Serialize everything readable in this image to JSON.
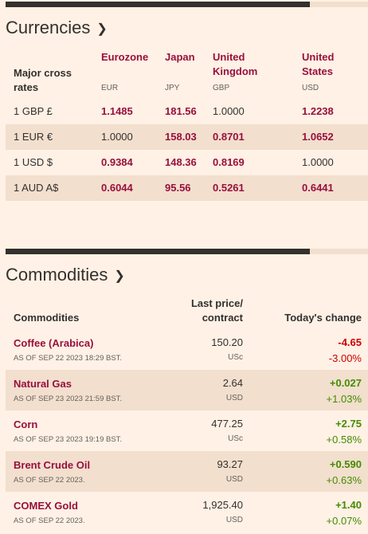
{
  "currencies": {
    "title": "Currencies",
    "row_header": "Major cross rates",
    "columns": [
      {
        "name": "Eurozone",
        "code": "EUR"
      },
      {
        "name": "Japan",
        "code": "JPY"
      },
      {
        "name": "United Kingdom",
        "code": "GBP"
      },
      {
        "name": "United States",
        "code": "USD"
      }
    ],
    "rows": [
      {
        "label": "1 GBP £",
        "values": [
          "1.1485",
          "181.56",
          "1.0000",
          "1.2238"
        ]
      },
      {
        "label": "1 EUR €",
        "values": [
          "1.0000",
          "158.03",
          "0.8701",
          "1.0652"
        ]
      },
      {
        "label": "1 USD $",
        "values": [
          "0.9384",
          "148.36",
          "0.8169",
          "1.0000"
        ]
      },
      {
        "label": "1 AUD A$",
        "values": [
          "0.6044",
          "95.56",
          "0.5261",
          "0.6441"
        ]
      }
    ]
  },
  "commodities": {
    "title": "Commodities",
    "headers": {
      "name": "Commodities",
      "price_line1": "Last price/",
      "price_line2": "contract",
      "change": "Today's change"
    },
    "rows": [
      {
        "name": "Coffee (Arabica)",
        "date": "AS OF SEP 22 2023 18:29 BST.",
        "price": "150.20",
        "unit": "USc",
        "change": "-4.65",
        "pct": "-3.00%",
        "dir": "neg"
      },
      {
        "name": "Natural Gas",
        "date": "AS OF SEP 23 2023 21:59 BST.",
        "price": "2.64",
        "unit": "USD",
        "change": "+0.027",
        "pct": "+1.03%",
        "dir": "pos"
      },
      {
        "name": "Corn",
        "date": "AS OF SEP 23 2023 19:19 BST.",
        "price": "477.25",
        "unit": "USc",
        "change": "+2.75",
        "pct": "+0.58%",
        "dir": "pos"
      },
      {
        "name": "Brent Crude Oil",
        "date": "AS OF SEP 22 2023.",
        "price": "93.27",
        "unit": "USD",
        "change": "+0.590",
        "pct": "+0.63%",
        "dir": "pos"
      },
      {
        "name": "COMEX Gold",
        "date": "AS OF SEP 22 2023.",
        "price": "1,925.40",
        "unit": "USD",
        "change": "+1.40",
        "pct": "+0.07%",
        "dir": "pos"
      }
    ]
  },
  "icons": {
    "chevron": "chevron-right-icon"
  },
  "colors": {
    "background": "#fff1e5",
    "alt_row": "#f2dfce",
    "claret": "#990f3d",
    "negative": "#cc0000",
    "positive": "#458b00"
  }
}
